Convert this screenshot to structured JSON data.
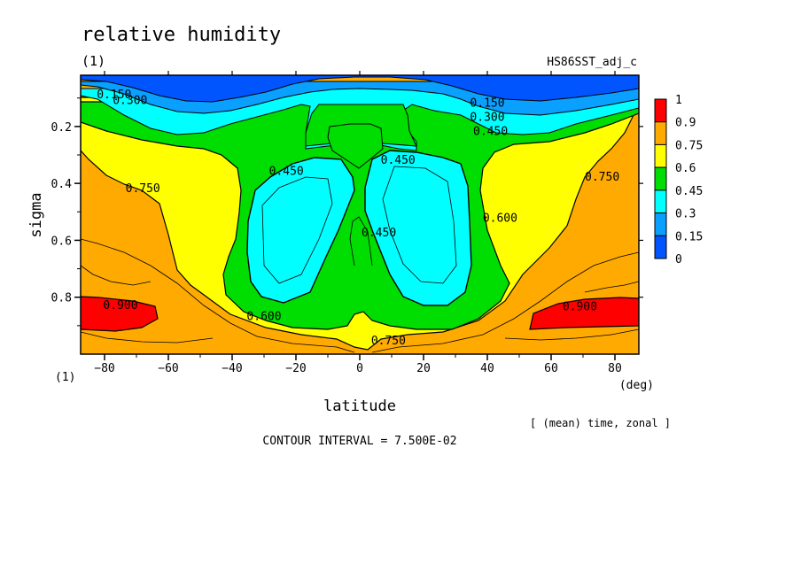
{
  "chart_data": {
    "type": "contour",
    "title": "relative humidity",
    "units_label": "(1)",
    "run_label": "HS86SST_adj_c",
    "xlabel": "latitude",
    "xunit": "(deg)",
    "ylabel": "sigma",
    "yunit": "(1)",
    "xlim": [
      -87.5,
      87.5
    ],
    "ylim": [
      1.0,
      0.02
    ],
    "x_ticks": [
      -80,
      -60,
      -40,
      -20,
      0,
      20,
      40,
      60,
      80
    ],
    "x_tick_labels": [
      "−80",
      "−60",
      "−40",
      "−20",
      "0",
      "20",
      "40",
      "60",
      "80"
    ],
    "y_ticks": [
      0.2,
      0.4,
      0.6,
      0.8
    ],
    "y_tick_labels": [
      "0.2",
      "0.4",
      "0.6",
      "0.8"
    ],
    "averaging_note": "[ (mean) time, zonal ]",
    "contour_interval_text": "CONTOUR INTERVAL = 7.500E-02",
    "legend": {
      "levels": [
        0,
        0.15,
        0.3,
        0.45,
        0.6,
        0.75,
        0.9,
        1
      ],
      "level_labels": [
        "0",
        "0.15",
        "0.3",
        "0.45",
        "0.6",
        "0.75",
        "0.9",
        "1"
      ],
      "colors": [
        "#0055ff",
        "#0aa0ff",
        "#00ffff",
        "#00dd00",
        "#ffff00",
        "#ffaa00",
        "#ff0000"
      ]
    },
    "contour_labels": [
      {
        "text": "0.150",
        "lat": -77,
        "sigma": 0.085
      },
      {
        "text": "0.300",
        "lat": -72,
        "sigma": 0.105
      },
      {
        "text": "0.150",
        "lat": 40,
        "sigma": 0.115
      },
      {
        "text": "0.300",
        "lat": 40,
        "sigma": 0.165
      },
      {
        "text": "0.450",
        "lat": 41,
        "sigma": 0.215
      },
      {
        "text": "0.450",
        "lat": -23,
        "sigma": 0.355
      },
      {
        "text": "0.450",
        "lat": 12,
        "sigma": 0.315
      },
      {
        "text": "0.450",
        "lat": 6,
        "sigma": 0.57
      },
      {
        "text": "0.750",
        "lat": -68,
        "sigma": 0.415
      },
      {
        "text": "0.750",
        "lat": 76,
        "sigma": 0.375
      },
      {
        "text": "0.600",
        "lat": 44,
        "sigma": 0.52
      },
      {
        "text": "0.900",
        "lat": -75,
        "sigma": 0.825
      },
      {
        "text": "0.900",
        "lat": 69,
        "sigma": 0.83
      },
      {
        "text": "0.600",
        "lat": -30,
        "sigma": 0.865
      },
      {
        "text": "0.750",
        "lat": 9,
        "sigma": 0.95
      }
    ]
  }
}
